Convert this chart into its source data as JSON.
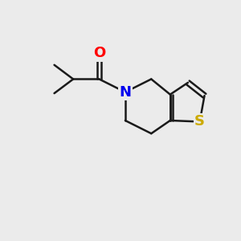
{
  "bg_color": "#ebebeb",
  "bond_color": "#1a1a1a",
  "bond_width": 1.8,
  "atom_colors": {
    "O": "#ff0000",
    "N": "#0000ee",
    "S": "#ccaa00"
  },
  "font_size": 13,
  "figsize": [
    3.0,
    3.0
  ],
  "dpi": 100
}
